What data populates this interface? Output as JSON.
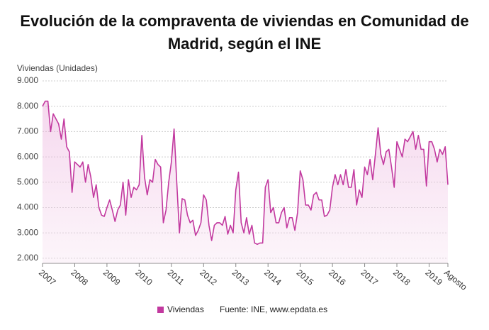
{
  "chart_data": {
    "type": "line",
    "title": "Evolución de la compraventa de viviendas en Comunidad de Madrid, según el INE",
    "y_label": "Viviendas (Unidades)",
    "source": "Fuente: INE, www.epdata.es",
    "x": [
      "2007",
      null,
      null,
      null,
      null,
      null,
      null,
      null,
      null,
      null,
      null,
      null,
      "2008",
      null,
      null,
      null,
      null,
      null,
      null,
      null,
      null,
      null,
      null,
      null,
      "2009",
      null,
      null,
      null,
      null,
      null,
      null,
      null,
      null,
      null,
      null,
      null,
      "2010",
      null,
      null,
      null,
      null,
      null,
      null,
      null,
      null,
      null,
      null,
      null,
      "2011",
      null,
      null,
      null,
      null,
      null,
      null,
      null,
      null,
      null,
      null,
      null,
      "2012",
      null,
      null,
      null,
      null,
      null,
      null,
      null,
      null,
      null,
      null,
      null,
      "2013",
      null,
      null,
      null,
      null,
      null,
      null,
      null,
      null,
      null,
      null,
      null,
      "2014",
      null,
      null,
      null,
      null,
      null,
      null,
      null,
      null,
      null,
      null,
      null,
      "2015",
      null,
      null,
      null,
      null,
      null,
      null,
      null,
      null,
      null,
      null,
      null,
      "2016",
      null,
      null,
      null,
      null,
      null,
      null,
      null,
      null,
      null,
      null,
      null,
      "2017",
      null,
      null,
      null,
      null,
      null,
      null,
      null,
      null,
      null,
      null,
      null,
      "2018",
      null,
      null,
      null,
      null,
      null,
      null,
      null,
      null,
      null,
      null,
      null,
      "2019",
      null,
      null,
      null,
      null,
      null,
      null,
      "Agosto"
    ],
    "series": [
      {
        "name": "Viviendas",
        "color": "#c2399f",
        "values": [
          8000,
          8200,
          8200,
          7000,
          7700,
          7500,
          7300,
          6700,
          7500,
          6400,
          6200,
          4600,
          5800,
          5700,
          5600,
          5800,
          5000,
          5700,
          5200,
          4400,
          4900,
          4000,
          3700,
          3650,
          4000,
          4300,
          3900,
          3450,
          3900,
          4100,
          5000,
          3700,
          5100,
          4400,
          4800,
          4700,
          4900,
          6850,
          5200,
          4500,
          5100,
          5000,
          5900,
          5700,
          5600,
          3400,
          3900,
          5000,
          5800,
          7100,
          5000,
          3000,
          4350,
          4300,
          3700,
          3400,
          3500,
          2900,
          3100,
          3400,
          4500,
          4300,
          3300,
          2700,
          3300,
          3400,
          3400,
          3300,
          3650,
          2950,
          3300,
          3000,
          4700,
          5400,
          3400,
          3000,
          3600,
          2950,
          3300,
          2600,
          2550,
          2600,
          2600,
          4800,
          5100,
          3800,
          4000,
          3400,
          3400,
          3800,
          4000,
          3200,
          3600,
          3600,
          3100,
          3800,
          5450,
          5100,
          4100,
          4100,
          3900,
          4500,
          4600,
          4300,
          4300,
          3650,
          3700,
          3900,
          4800,
          5300,
          4900,
          5300,
          4900,
          5500,
          4800,
          4800,
          5500,
          4100,
          4700,
          4400,
          5600,
          5300,
          5900,
          5100,
          6100,
          7150,
          6100,
          5700,
          6200,
          6300,
          5600,
          4800,
          6600,
          6300,
          6000,
          6700,
          6600,
          6800,
          7000,
          6300,
          6850,
          6300,
          6300,
          4850,
          6600,
          6600,
          6300,
          5800,
          6300,
          6100,
          6400,
          4900
        ]
      }
    ],
    "ylim": [
      1800,
      9000
    ],
    "yticks": [
      {
        "value": 2000,
        "label": "2.000"
      },
      {
        "value": 3000,
        "label": "3.000"
      },
      {
        "value": 4000,
        "label": "4.000"
      },
      {
        "value": 5000,
        "label": "5.000"
      },
      {
        "value": 6000,
        "label": "6.000"
      },
      {
        "value": 7000,
        "label": "7.000"
      },
      {
        "value": 8000,
        "label": "8.000"
      },
      {
        "value": 9000,
        "label": "9.000"
      }
    ],
    "grid": true
  }
}
